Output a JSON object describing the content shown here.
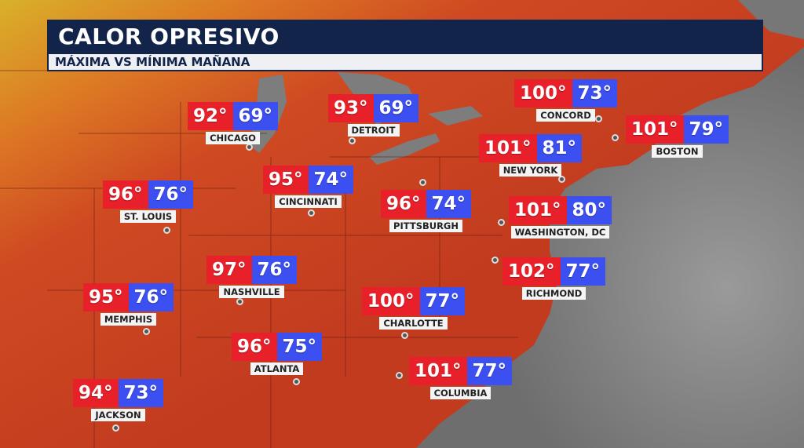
{
  "header": {
    "title": "CALOR OPRESIVO",
    "subtitle": "MÁXIMA VS MÍNIMA MAÑANA"
  },
  "colors": {
    "high": "#e8202a",
    "low": "#3c4ff0",
    "land": "#c8401f",
    "ocean": "#8a8a8a",
    "title_bg": "#13244a"
  },
  "cities": [
    {
      "name": "CHICAGO",
      "high": "92°",
      "low": "69°"
    },
    {
      "name": "DETROIT",
      "high": "93°",
      "low": "69°"
    },
    {
      "name": "CONCORD",
      "high": "100°",
      "low": "73°"
    },
    {
      "name": "BOSTON",
      "high": "101°",
      "low": "79°"
    },
    {
      "name": "NEW YORK",
      "high": "101°",
      "low": "81°"
    },
    {
      "name": "ST. LOUIS",
      "high": "96°",
      "low": "76°"
    },
    {
      "name": "CINCINNATI",
      "high": "95°",
      "low": "74°"
    },
    {
      "name": "PITTSBURGH",
      "high": "96°",
      "low": "74°"
    },
    {
      "name": "WASHINGTON, DC",
      "high": "101°",
      "low": "80°"
    },
    {
      "name": "NASHVILLE",
      "high": "97°",
      "low": "76°"
    },
    {
      "name": "MEMPHIS",
      "high": "95°",
      "low": "76°"
    },
    {
      "name": "RICHMOND",
      "high": "102°",
      "low": "77°"
    },
    {
      "name": "CHARLOTTE",
      "high": "100°",
      "low": "77°"
    },
    {
      "name": "ATLANTA",
      "high": "96°",
      "low": "75°"
    },
    {
      "name": "COLUMBIA",
      "high": "101°",
      "low": "77°"
    },
    {
      "name": "JACKSON",
      "high": "94°",
      "low": "73°"
    }
  ]
}
